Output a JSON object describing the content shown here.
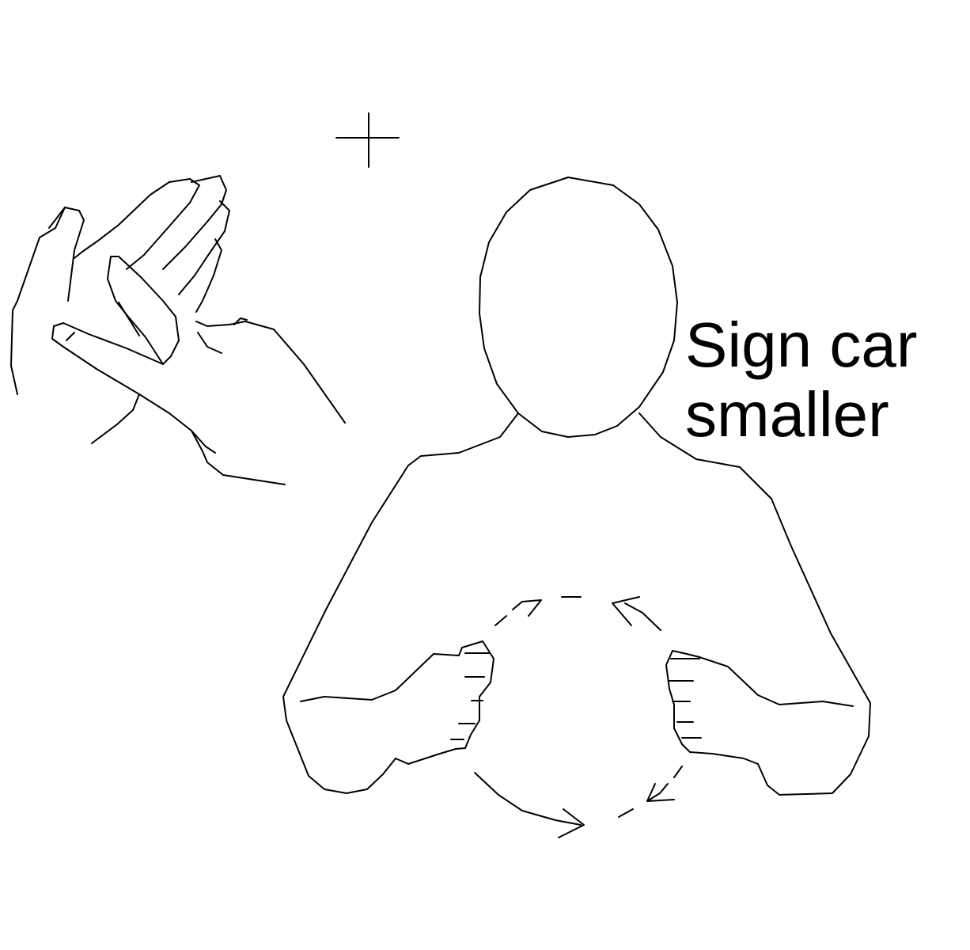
{
  "caption": {
    "line1": "Sign car",
    "line2": "smaller"
  },
  "colors": {
    "ink": "#000000",
    "background": "#ffffff"
  }
}
